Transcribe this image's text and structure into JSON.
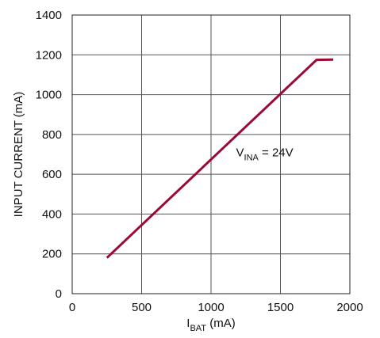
{
  "chart_data": {
    "type": "line",
    "xlabel": {
      "main": "I",
      "sub": "BAT",
      "rest": " (mA)"
    },
    "ylabel": "INPUT CURRENT (mA)",
    "xlim": [
      0,
      2000
    ],
    "ylim": [
      0,
      1400
    ],
    "x_ticks": [
      "0",
      "500",
      "1000",
      "1500",
      "2000"
    ],
    "y_ticks": [
      "0",
      "200",
      "400",
      "600",
      "800",
      "1000",
      "1200",
      "1400"
    ],
    "grid": true,
    "series": [
      {
        "color": "#9b0a35",
        "x": [
          250,
          1760,
          1880
        ],
        "y": [
          180,
          1175,
          1176
        ]
      }
    ],
    "annotation": {
      "main": "V",
      "sub": "INA",
      "rest": " = 24V",
      "x": 1180,
      "y": 690
    }
  }
}
